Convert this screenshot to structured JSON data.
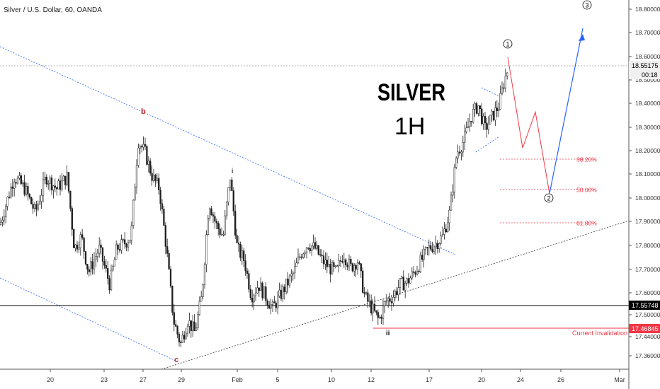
{
  "header": {
    "title": "Silver / U.S. Dollar, 60, OANDA"
  },
  "annotations": {
    "headline": "SILVER",
    "timeframe": "1H",
    "wave_1": "1",
    "wave_2": "2",
    "wave_3": "3",
    "wave_b": "b",
    "wave_c": "c",
    "wave_i": "i",
    "wave_ii": "ii",
    "current_invalidation": "Current Invalidation"
  },
  "price_axis": {
    "ticks": [
      "18.80000",
      "18.70000",
      "18.60000",
      "18.50000",
      "18.40000",
      "18.30000",
      "18.20000",
      "18.10000",
      "18.00000",
      "17.90000",
      "17.80000",
      "17.70000",
      "17.60000",
      "17.50000",
      "17.44000",
      "17.36000"
    ],
    "last_price": "18.55175",
    "countdown": "00:18",
    "level_black": "17.55748",
    "level_red": "17.46845"
  },
  "time_axis": {
    "ticks": [
      "20",
      "23",
      "27",
      "29",
      "Feb",
      "5",
      "10",
      "12",
      "17",
      "20",
      "24",
      "26",
      "Mar"
    ]
  },
  "fib_levels": [
    {
      "label": "38.20%",
      "price": 18.16
    },
    {
      "label": "50.00%",
      "price": 18.03
    },
    {
      "label": "61.80%",
      "price": 17.895
    }
  ],
  "colors": {
    "up": "#26a69a",
    "down": "#ef5350",
    "candle": "#1f1f1f",
    "blue_channel": "#2962ff",
    "red_projection": "#f23645",
    "blue_projection": "#2962ff",
    "invalidation": "#f23645"
  },
  "chart_data": {
    "type": "candlestick",
    "title": "Silver / U.S. Dollar, 60, OANDA",
    "ylim": [
      17.32,
      18.86
    ],
    "key_prices": {
      "wave_b_high": 18.35,
      "wave_c_low": 17.33,
      "wave_i_high": 18.1,
      "wave_ii_low": 17.47,
      "wave_1_high": 18.6,
      "last_price": 18.55175
    },
    "price_path": [
      [
        0,
        17.9
      ],
      [
        10,
        18.0
      ],
      [
        20,
        18.1
      ],
      [
        35,
        18.05
      ],
      [
        50,
        17.95
      ],
      [
        65,
        18.1
      ],
      [
        80,
        18.05
      ],
      [
        95,
        18.1
      ],
      [
        105,
        17.8
      ],
      [
        115,
        17.85
      ],
      [
        125,
        17.7
      ],
      [
        140,
        17.8
      ],
      [
        155,
        17.65
      ],
      [
        165,
        17.8
      ],
      [
        175,
        17.82
      ],
      [
        185,
        17.85
      ],
      [
        195,
        18.25
      ],
      [
        205,
        18.2
      ],
      [
        215,
        18.1
      ],
      [
        225,
        18.05
      ],
      [
        235,
        17.8
      ],
      [
        245,
        17.5
      ],
      [
        255,
        17.4
      ],
      [
        265,
        17.5
      ],
      [
        275,
        17.45
      ],
      [
        285,
        17.6
      ],
      [
        295,
        18.0
      ],
      [
        305,
        17.9
      ],
      [
        315,
        17.85
      ],
      [
        325,
        18.1
      ],
      [
        335,
        17.8
      ],
      [
        345,
        17.75
      ],
      [
        355,
        17.6
      ],
      [
        365,
        17.65
      ],
      [
        375,
        17.6
      ],
      [
        385,
        17.55
      ],
      [
        395,
        17.6
      ],
      [
        405,
        17.65
      ],
      [
        415,
        17.7
      ],
      [
        425,
        17.78
      ],
      [
        435,
        17.82
      ],
      [
        445,
        17.8
      ],
      [
        455,
        17.75
      ],
      [
        465,
        17.72
      ],
      [
        475,
        17.7
      ],
      [
        485,
        17.78
      ],
      [
        495,
        17.72
      ],
      [
        505,
        17.75
      ],
      [
        515,
        17.6
      ],
      [
        525,
        17.55
      ],
      [
        535,
        17.5
      ],
      [
        545,
        17.58
      ],
      [
        555,
        17.6
      ],
      [
        565,
        17.65
      ],
      [
        575,
        17.66
      ],
      [
        585,
        17.7
      ],
      [
        595,
        17.75
      ],
      [
        605,
        17.8
      ],
      [
        615,
        17.82
      ],
      [
        625,
        17.85
      ],
      [
        635,
        17.95
      ],
      [
        645,
        18.2
      ],
      [
        655,
        18.25
      ],
      [
        665,
        18.35
      ],
      [
        675,
        18.4
      ],
      [
        685,
        18.3
      ],
      [
        695,
        18.35
      ],
      [
        705,
        18.4
      ],
      [
        712,
        18.5
      ],
      [
        717,
        18.55
      ]
    ],
    "projection_red": [
      [
        717,
        18.6
      ],
      [
        738,
        18.22
      ],
      [
        756,
        18.37
      ],
      [
        776,
        18.03
      ]
    ],
    "projection_blue": [
      [
        776,
        18.03
      ],
      [
        823,
        18.72
      ]
    ]
  }
}
